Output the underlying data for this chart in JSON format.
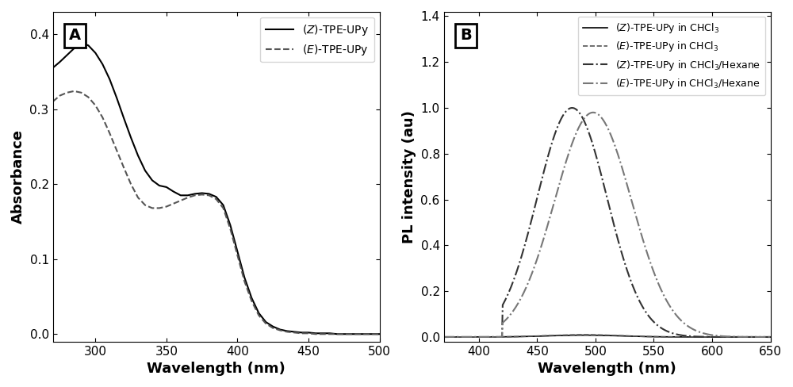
{
  "panel_A": {
    "title": "A",
    "xlabel": "Wavelength (nm)",
    "ylabel": "Absorbance",
    "xlim": [
      270,
      500
    ],
    "ylim": [
      -0.01,
      0.43
    ],
    "xticks": [
      300,
      350,
      400,
      450,
      500
    ],
    "yticks": [
      0.0,
      0.1,
      0.2,
      0.3,
      0.4
    ],
    "Z_TPE": {
      "label": "(Z)-TPE-UPy",
      "linestyle": "solid",
      "color": "#000000",
      "linewidth": 1.5,
      "x": [
        270,
        275,
        280,
        285,
        290,
        295,
        300,
        305,
        310,
        315,
        320,
        325,
        330,
        335,
        340,
        345,
        350,
        355,
        360,
        365,
        370,
        375,
        380,
        385,
        390,
        395,
        400,
        405,
        410,
        415,
        420,
        425,
        430,
        435,
        440,
        445,
        450,
        455,
        460,
        465,
        470,
        475,
        480,
        485,
        490,
        495,
        500
      ],
      "y": [
        0.355,
        0.363,
        0.372,
        0.381,
        0.388,
        0.385,
        0.375,
        0.36,
        0.34,
        0.315,
        0.288,
        0.262,
        0.238,
        0.218,
        0.205,
        0.198,
        0.196,
        0.19,
        0.185,
        0.185,
        0.187,
        0.188,
        0.187,
        0.183,
        0.172,
        0.145,
        0.11,
        0.075,
        0.048,
        0.028,
        0.016,
        0.01,
        0.006,
        0.004,
        0.003,
        0.002,
        0.002,
        0.001,
        0.001,
        0.001,
        0.0,
        0.0,
        0.0,
        0.0,
        0.0,
        0.0,
        0.0
      ]
    },
    "E_TPE": {
      "label": "(E)-TPE-UPy",
      "linestyle": "dashed",
      "color": "#555555",
      "linewidth": 1.5,
      "x": [
        270,
        275,
        280,
        285,
        290,
        295,
        300,
        305,
        310,
        315,
        320,
        325,
        330,
        335,
        340,
        345,
        350,
        355,
        360,
        365,
        370,
        375,
        380,
        385,
        390,
        395,
        400,
        405,
        410,
        415,
        420,
        425,
        430,
        435,
        440,
        445,
        450,
        455,
        460,
        465,
        470,
        475,
        480,
        485,
        490,
        495,
        500
      ],
      "y": [
        0.31,
        0.318,
        0.322,
        0.324,
        0.322,
        0.316,
        0.305,
        0.289,
        0.268,
        0.245,
        0.222,
        0.2,
        0.182,
        0.172,
        0.168,
        0.168,
        0.17,
        0.174,
        0.178,
        0.182,
        0.185,
        0.186,
        0.185,
        0.18,
        0.168,
        0.14,
        0.105,
        0.07,
        0.044,
        0.025,
        0.014,
        0.008,
        0.005,
        0.003,
        0.002,
        0.001,
        0.001,
        0.0,
        0.0,
        0.0,
        0.0,
        0.0,
        0.0,
        0.0,
        0.0,
        0.0,
        0.0
      ]
    }
  },
  "panel_B": {
    "title": "B",
    "xlabel": "Wavelength (nm)",
    "ylabel": "PL intensity (au)",
    "xlim": [
      370,
      650
    ],
    "ylim": [
      -0.02,
      1.42
    ],
    "xticks": [
      400,
      450,
      500,
      550,
      600,
      650
    ],
    "yticks": [
      0.0,
      0.2,
      0.4,
      0.6,
      0.8,
      1.0,
      1.2,
      1.4
    ],
    "Z_CHCl3": {
      "label": "(Z)-TPE-UPy in CHCl₃",
      "linestyle": "solid",
      "color": "#000000",
      "linewidth": 1.2,
      "peak": 490,
      "amplitude": 0.008,
      "sigma": 30
    },
    "E_CHCl3": {
      "label": "(E)-TPE-UPy in CHCl₃",
      "linestyle": "dashed",
      "color": "#555555",
      "linewidth": 1.2,
      "peak": 490,
      "amplitude": 0.01,
      "sigma": 30
    },
    "Z_hexane": {
      "label": "(Z)-TPE-UPy in CHCl₃/Hexane",
      "linestyle": "dashdot",
      "color": "#333333",
      "linewidth": 1.5,
      "peak": 480,
      "amplitude": 1.0,
      "sigma": 30
    },
    "E_hexane": {
      "label": "(E)-TPE-UPy in CHCl₃/Hexane",
      "linestyle": "dashdot",
      "color": "#777777",
      "linewidth": 1.5,
      "peak": 498,
      "amplitude": 0.98,
      "sigma": 33
    }
  }
}
